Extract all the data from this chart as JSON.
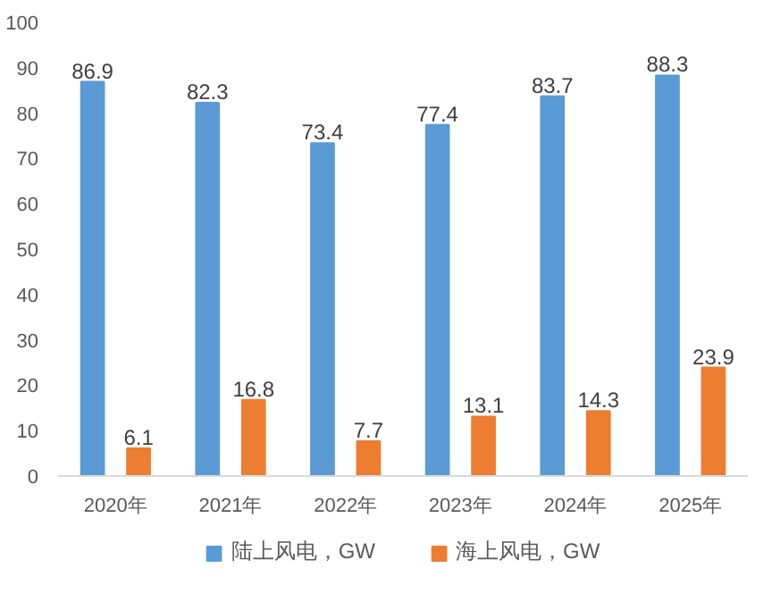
{
  "chart_data": {
    "type": "bar",
    "categories": [
      "2020年",
      "2021年",
      "2022年",
      "2023年",
      "2024年",
      "2025年"
    ],
    "series": [
      {
        "name": "陆上风电，GW",
        "color": "#5b9bd5",
        "values": [
          86.9,
          82.3,
          73.4,
          77.4,
          83.7,
          88.3
        ]
      },
      {
        "name": "海上风电，GW",
        "color": "#ed7d31",
        "values": [
          6.1,
          16.8,
          7.7,
          13.1,
          14.3,
          23.9
        ]
      }
    ],
    "ylim": [
      0,
      100
    ],
    "yticks": [
      0,
      10,
      20,
      30,
      40,
      50,
      60,
      70,
      80,
      90,
      100
    ],
    "grid": false,
    "legend": "bottom",
    "data_labels": true
  }
}
